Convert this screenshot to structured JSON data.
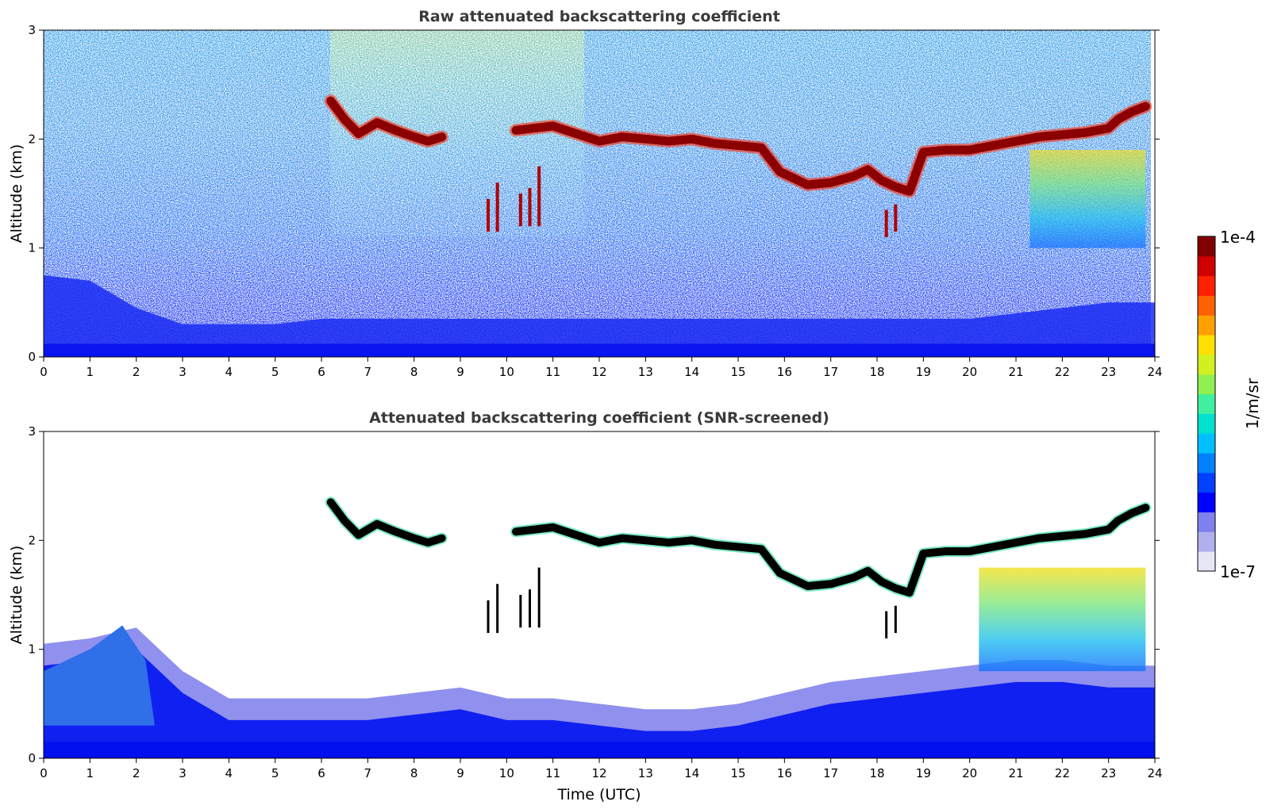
{
  "chart_data": [
    {
      "type": "heatmap",
      "title": "Raw attenuated backscattering coefficient",
      "xlabel": "",
      "ylabel": "Altitude (km)",
      "xlim": [
        0,
        24
      ],
      "ylim": [
        0,
        3
      ],
      "xticks": [
        "0",
        "1",
        "2",
        "3",
        "4",
        "5",
        "6",
        "7",
        "8",
        "9",
        "10",
        "11",
        "12",
        "13",
        "14",
        "15",
        "16",
        "17",
        "18",
        "19",
        "20",
        "21",
        "22",
        "23",
        "24"
      ],
      "yticks": [
        "0",
        "1",
        "2",
        "3"
      ],
      "features": {
        "cloud_layer": {
          "x": [
            6.2,
            6.5,
            6.8,
            7.2,
            7.6,
            8.0,
            8.3,
            8.6,
            9.0,
            10.2,
            10.6,
            11.0,
            11.5,
            12.0,
            12.5,
            13.0,
            13.5,
            14.0,
            14.5,
            15.0,
            15.5,
            15.9,
            16.1,
            16.5,
            17.0,
            17.5,
            17.8,
            18.1,
            18.4,
            18.7,
            19.0,
            19.5,
            20.0,
            20.5,
            21.0,
            21.5,
            22.0,
            22.5,
            23.0,
            23.2,
            23.5,
            23.8
          ],
          "y": [
            2.35,
            2.18,
            2.05,
            2.15,
            2.08,
            2.02,
            1.98,
            2.02,
            null,
            2.08,
            2.1,
            2.12,
            2.05,
            1.98,
            2.02,
            2.0,
            1.98,
            2.0,
            1.96,
            1.94,
            1.92,
            1.7,
            1.66,
            1.58,
            1.6,
            1.66,
            1.72,
            1.62,
            1.56,
            1.52,
            1.88,
            1.9,
            1.9,
            1.94,
            1.98,
            2.02,
            2.04,
            2.06,
            2.1,
            2.18,
            2.25,
            2.3
          ],
          "intensity": "1e-4"
        },
        "boundary_layer_top_km": [
          0.75,
          0.7,
          0.45,
          0.3,
          0.3,
          0.3,
          0.35,
          0.35,
          0.35,
          0.35,
          0.35,
          0.35,
          0.35,
          0.35,
          0.35,
          0.35,
          0.35,
          0.35,
          0.35,
          0.35,
          0.35,
          0.4,
          0.45,
          0.5,
          0.5
        ],
        "virga_x_range": [
          21.3,
          23.8
        ]
      }
    },
    {
      "type": "heatmap",
      "title": "Attenuated backscattering coefficient (SNR-screened)",
      "xlabel": "Time (UTC)",
      "ylabel": "Altitude (km)",
      "xlim": [
        0,
        24
      ],
      "ylim": [
        0,
        3
      ],
      "xticks": [
        "0",
        "1",
        "2",
        "3",
        "4",
        "5",
        "6",
        "7",
        "8",
        "9",
        "10",
        "11",
        "12",
        "13",
        "14",
        "15",
        "16",
        "17",
        "18",
        "19",
        "20",
        "21",
        "22",
        "23",
        "24"
      ],
      "yticks": [
        "0",
        "1",
        "2",
        "3"
      ],
      "features": {
        "cloud_layer_color": "#000000",
        "aerosol_top_km": [
          1.05,
          1.1,
          1.2,
          0.8,
          0.55,
          0.55,
          0.55,
          0.55,
          0.6,
          0.65,
          0.55,
          0.55,
          0.5,
          0.45,
          0.45,
          0.5,
          0.6,
          0.7,
          0.75,
          0.8,
          0.85,
          0.9,
          0.9,
          0.85,
          0.85
        ]
      }
    }
  ],
  "colorbar": {
    "label": "1/m/sr",
    "max_label": "1e-4",
    "min_label": "1e-7",
    "colors": [
      "#e6e6f7",
      "#b0b0ee",
      "#8080ee",
      "#0000ff",
      "#0040ff",
      "#0080ff",
      "#00c0ff",
      "#00e0d0",
      "#40f0a0",
      "#90f050",
      "#d0f020",
      "#ffe000",
      "#ffa000",
      "#ff6000",
      "#ff2000",
      "#d00000",
      "#800000"
    ]
  }
}
